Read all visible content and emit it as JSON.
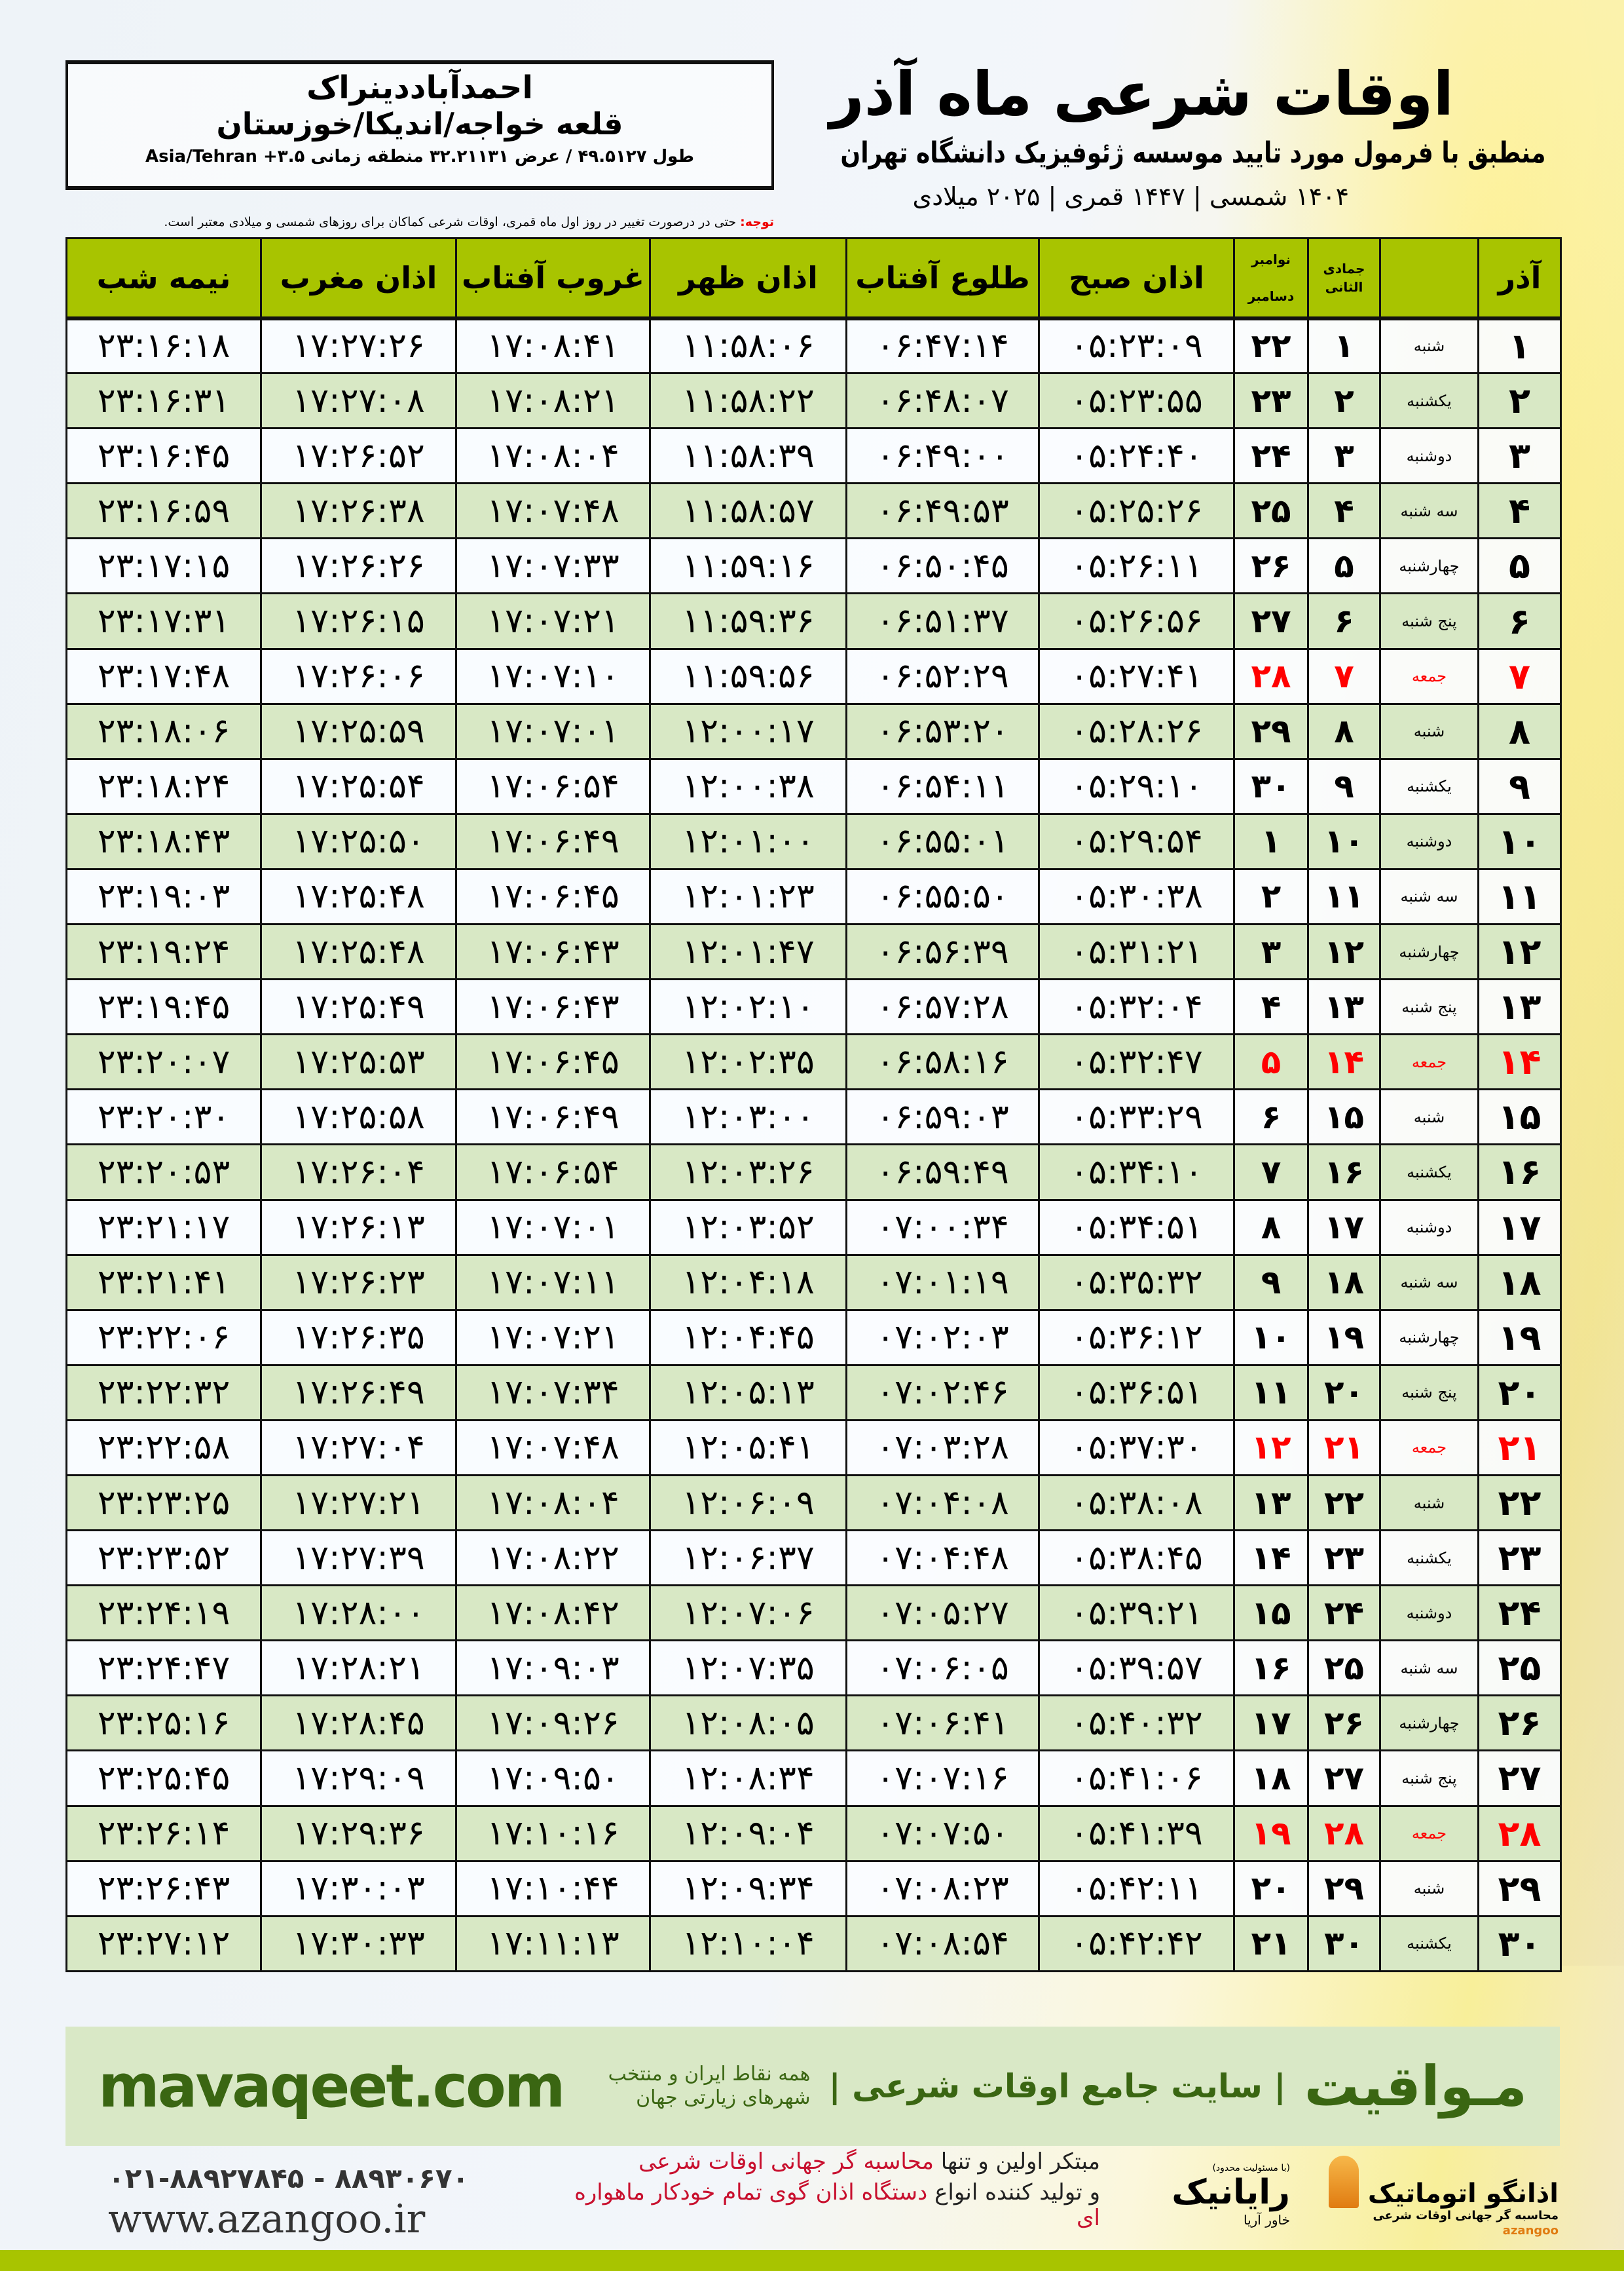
{
  "location": {
    "name": "احمدآباددینراک",
    "region": "قلعه خواجه/اندیکا/خوزستان",
    "coords": "طول ۴۹.۵۱۲۷ / عرض ۳۲.۲۱۱۳۱ منطقه زمانی ۳.۵+ Asia/Tehran"
  },
  "header": {
    "title": "اوقات شرعی ماه آذر",
    "subtitle": "منطبق با فرمول مورد تایید موسسه ژئوفیزیک دانشگاه تهران",
    "dates": "۱۴۰۴ شمسی | ۱۴۴۷ قمری | ۲۰۲۵ میلادی"
  },
  "note": {
    "label": "توجه:",
    "text": " حتی در درصورت تغییر در روز اول ماه قمری، اوقات شرعی کماکان برای روزهای شمسی و میلادی معتبر است."
  },
  "table": {
    "headers": {
      "azar": "آذر",
      "jumada": "جمادی الثانی",
      "gregorian_top": "نوامبر",
      "gregorian_bottom": "دسامبر",
      "fajr": "اذان صبح",
      "sunrise": "طلوع آفتاب",
      "dhuhr": "اذان ظهر",
      "sunset": "غروب آفتاب",
      "maghrib": "اذان مغرب",
      "midnight": "نیمه شب"
    },
    "holiday_color": "#ff0000",
    "rows": [
      [
        "۱",
        "شنبه",
        "۱",
        "۲۲",
        "۰۵:۲۳:۰۹",
        "۰۶:۴۷:۱۴",
        "۱۱:۵۸:۰۶",
        "۱۷:۰۸:۴۱",
        "۱۷:۲۷:۲۶",
        "۲۳:۱۶:۱۸",
        false
      ],
      [
        "۲",
        "یکشنبه",
        "۲",
        "۲۳",
        "۰۵:۲۳:۵۵",
        "۰۶:۴۸:۰۷",
        "۱۱:۵۸:۲۲",
        "۱۷:۰۸:۲۱",
        "۱۷:۲۷:۰۸",
        "۲۳:۱۶:۳۱",
        false
      ],
      [
        "۳",
        "دوشنبه",
        "۳",
        "۲۴",
        "۰۵:۲۴:۴۰",
        "۰۶:۴۹:۰۰",
        "۱۱:۵۸:۳۹",
        "۱۷:۰۸:۰۴",
        "۱۷:۲۶:۵۲",
        "۲۳:۱۶:۴۵",
        false
      ],
      [
        "۴",
        "سه شنبه",
        "۴",
        "۲۵",
        "۰۵:۲۵:۲۶",
        "۰۶:۴۹:۵۳",
        "۱۱:۵۸:۵۷",
        "۱۷:۰۷:۴۸",
        "۱۷:۲۶:۳۸",
        "۲۳:۱۶:۵۹",
        false
      ],
      [
        "۵",
        "چهارشنبه",
        "۵",
        "۲۶",
        "۰۵:۲۶:۱۱",
        "۰۶:۵۰:۴۵",
        "۱۱:۵۹:۱۶",
        "۱۷:۰۷:۳۳",
        "۱۷:۲۶:۲۶",
        "۲۳:۱۷:۱۵",
        false
      ],
      [
        "۶",
        "پنج شنبه",
        "۶",
        "۲۷",
        "۰۵:۲۶:۵۶",
        "۰۶:۵۱:۳۷",
        "۱۱:۵۹:۳۶",
        "۱۷:۰۷:۲۱",
        "۱۷:۲۶:۱۵",
        "۲۳:۱۷:۳۱",
        false
      ],
      [
        "۷",
        "جمعه",
        "۷",
        "۲۸",
        "۰۵:۲۷:۴۱",
        "۰۶:۵۲:۲۹",
        "۱۱:۵۹:۵۶",
        "۱۷:۰۷:۱۰",
        "۱۷:۲۶:۰۶",
        "۲۳:۱۷:۴۸",
        true
      ],
      [
        "۸",
        "شنبه",
        "۸",
        "۲۹",
        "۰۵:۲۸:۲۶",
        "۰۶:۵۳:۲۰",
        "۱۲:۰۰:۱۷",
        "۱۷:۰۷:۰۱",
        "۱۷:۲۵:۵۹",
        "۲۳:۱۸:۰۶",
        false
      ],
      [
        "۹",
        "یکشنبه",
        "۹",
        "۳۰",
        "۰۵:۲۹:۱۰",
        "۰۶:۵۴:۱۱",
        "۱۲:۰۰:۳۸",
        "۱۷:۰۶:۵۴",
        "۱۷:۲۵:۵۴",
        "۲۳:۱۸:۲۴",
        false
      ],
      [
        "۱۰",
        "دوشنبه",
        "۱۰",
        "۱",
        "۰۵:۲۹:۵۴",
        "۰۶:۵۵:۰۱",
        "۱۲:۰۱:۰۰",
        "۱۷:۰۶:۴۹",
        "۱۷:۲۵:۵۰",
        "۲۳:۱۸:۴۳",
        false
      ],
      [
        "۱۱",
        "سه شنبه",
        "۱۱",
        "۲",
        "۰۵:۳۰:۳۸",
        "۰۶:۵۵:۵۰",
        "۱۲:۰۱:۲۳",
        "۱۷:۰۶:۴۵",
        "۱۷:۲۵:۴۸",
        "۲۳:۱۹:۰۳",
        false
      ],
      [
        "۱۲",
        "چهارشنبه",
        "۱۲",
        "۳",
        "۰۵:۳۱:۲۱",
        "۰۶:۵۶:۳۹",
        "۱۲:۰۱:۴۷",
        "۱۷:۰۶:۴۳",
        "۱۷:۲۵:۴۸",
        "۲۳:۱۹:۲۴",
        false
      ],
      [
        "۱۳",
        "پنج شنبه",
        "۱۳",
        "۴",
        "۰۵:۳۲:۰۴",
        "۰۶:۵۷:۲۸",
        "۱۲:۰۲:۱۰",
        "۱۷:۰۶:۴۳",
        "۱۷:۲۵:۴۹",
        "۲۳:۱۹:۴۵",
        false
      ],
      [
        "۱۴",
        "جمعه",
        "۱۴",
        "۵",
        "۰۵:۳۲:۴۷",
        "۰۶:۵۸:۱۶",
        "۱۲:۰۲:۳۵",
        "۱۷:۰۶:۴۵",
        "۱۷:۲۵:۵۳",
        "۲۳:۲۰:۰۷",
        true
      ],
      [
        "۱۵",
        "شنبه",
        "۱۵",
        "۶",
        "۰۵:۳۳:۲۹",
        "۰۶:۵۹:۰۳",
        "۱۲:۰۳:۰۰",
        "۱۷:۰۶:۴۹",
        "۱۷:۲۵:۵۸",
        "۲۳:۲۰:۳۰",
        false
      ],
      [
        "۱۶",
        "یکشنبه",
        "۱۶",
        "۷",
        "۰۵:۳۴:۱۰",
        "۰۶:۵۹:۴۹",
        "۱۲:۰۳:۲۶",
        "۱۷:۰۶:۵۴",
        "۱۷:۲۶:۰۴",
        "۲۳:۲۰:۵۳",
        false
      ],
      [
        "۱۷",
        "دوشنبه",
        "۱۷",
        "۸",
        "۰۵:۳۴:۵۱",
        "۰۷:۰۰:۳۴",
        "۱۲:۰۳:۵۲",
        "۱۷:۰۷:۰۱",
        "۱۷:۲۶:۱۳",
        "۲۳:۲۱:۱۷",
        false
      ],
      [
        "۱۸",
        "سه شنبه",
        "۱۸",
        "۹",
        "۰۵:۳۵:۳۲",
        "۰۷:۰۱:۱۹",
        "۱۲:۰۴:۱۸",
        "۱۷:۰۷:۱۱",
        "۱۷:۲۶:۲۳",
        "۲۳:۲۱:۴۱",
        false
      ],
      [
        "۱۹",
        "چهارشنبه",
        "۱۹",
        "۱۰",
        "۰۵:۳۶:۱۲",
        "۰۷:۰۲:۰۳",
        "۱۲:۰۴:۴۵",
        "۱۷:۰۷:۲۱",
        "۱۷:۲۶:۳۵",
        "۲۳:۲۲:۰۶",
        false
      ],
      [
        "۲۰",
        "پنج شنبه",
        "۲۰",
        "۱۱",
        "۰۵:۳۶:۵۱",
        "۰۷:۰۲:۴۶",
        "۱۲:۰۵:۱۳",
        "۱۷:۰۷:۳۴",
        "۱۷:۲۶:۴۹",
        "۲۳:۲۲:۳۲",
        false
      ],
      [
        "۲۱",
        "جمعه",
        "۲۱",
        "۱۲",
        "۰۵:۳۷:۳۰",
        "۰۷:۰۳:۲۸",
        "۱۲:۰۵:۴۱",
        "۱۷:۰۷:۴۸",
        "۱۷:۲۷:۰۴",
        "۲۳:۲۲:۵۸",
        true
      ],
      [
        "۲۲",
        "شنبه",
        "۲۲",
        "۱۳",
        "۰۵:۳۸:۰۸",
        "۰۷:۰۴:۰۸",
        "۱۲:۰۶:۰۹",
        "۱۷:۰۸:۰۴",
        "۱۷:۲۷:۲۱",
        "۲۳:۲۳:۲۵",
        false
      ],
      [
        "۲۳",
        "یکشنبه",
        "۲۳",
        "۱۴",
        "۰۵:۳۸:۴۵",
        "۰۷:۰۴:۴۸",
        "۱۲:۰۶:۳۷",
        "۱۷:۰۸:۲۲",
        "۱۷:۲۷:۳۹",
        "۲۳:۲۳:۵۲",
        false
      ],
      [
        "۲۴",
        "دوشنبه",
        "۲۴",
        "۱۵",
        "۰۵:۳۹:۲۱",
        "۰۷:۰۵:۲۷",
        "۱۲:۰۷:۰۶",
        "۱۷:۰۸:۴۲",
        "۱۷:۲۸:۰۰",
        "۲۳:۲۴:۱۹",
        false
      ],
      [
        "۲۵",
        "سه شنبه",
        "۲۵",
        "۱۶",
        "۰۵:۳۹:۵۷",
        "۰۷:۰۶:۰۵",
        "۱۲:۰۷:۳۵",
        "۱۷:۰۹:۰۳",
        "۱۷:۲۸:۲۱",
        "۲۳:۲۴:۴۷",
        false
      ],
      [
        "۲۶",
        "چهارشنبه",
        "۲۶",
        "۱۷",
        "۰۵:۴۰:۳۲",
        "۰۷:۰۶:۴۱",
        "۱۲:۰۸:۰۵",
        "۱۷:۰۹:۲۶",
        "۱۷:۲۸:۴۵",
        "۲۳:۲۵:۱۶",
        false
      ],
      [
        "۲۷",
        "پنج شنبه",
        "۲۷",
        "۱۸",
        "۰۵:۴۱:۰۶",
        "۰۷:۰۷:۱۶",
        "۱۲:۰۸:۳۴",
        "۱۷:۰۹:۵۰",
        "۱۷:۲۹:۰۹",
        "۲۳:۲۵:۴۵",
        false
      ],
      [
        "۲۸",
        "جمعه",
        "۲۸",
        "۱۹",
        "۰۵:۴۱:۳۹",
        "۰۷:۰۷:۵۰",
        "۱۲:۰۹:۰۴",
        "۱۷:۱۰:۱۶",
        "۱۷:۲۹:۳۶",
        "۲۳:۲۶:۱۴",
        true
      ],
      [
        "۲۹",
        "شنبه",
        "۲۹",
        "۲۰",
        "۰۵:۴۲:۱۱",
        "۰۷:۰۸:۲۳",
        "۱۲:۰۹:۳۴",
        "۱۷:۱۰:۴۴",
        "۱۷:۳۰:۰۳",
        "۲۳:۲۶:۴۳",
        false
      ],
      [
        "۳۰",
        "یکشنبه",
        "۳۰",
        "۲۱",
        "۰۵:۴۲:۴۲",
        "۰۷:۰۸:۵۴",
        "۱۲:۱۰:۰۴",
        "۱۷:۱۱:۱۳",
        "۱۷:۳۰:۳۳",
        "۲۳:۲۷:۱۲",
        false
      ]
    ]
  },
  "banner": {
    "brand": "مـواقیت",
    "tagline": "| سایت جامع اوقات شرعی |",
    "sub": "همه نقاط ایران و منتخب شهرهای زیارتی جهان",
    "site": "mavaqeet.com"
  },
  "footer": {
    "line1_a": "مبتکر اولین و تنها ",
    "line1_b": "محاسبه گر جهانی اوقات شرعی",
    "line2_a": "و تولید کننده انواع ",
    "line2_b": "دستگاه اذان گوی تمام خودکار ماهواره ای",
    "phone": "۰۲۱-۸۸۹۲۷۸۴۵ - ۸۸۹۳۰۶۷۰",
    "web": "www.azangoo.ir",
    "logo_azangoo": "اذانگو اتوماتیک",
    "logo_azangoo_sub": "محاسبه گر جهانی اوقات شرعی",
    "logo_azangoo_latin": "azangoo",
    "logo_rayanik": "رایانیک",
    "logo_rayanik_sub": "خاور آریا",
    "logo_rayanik_note": "(با مسئولیت محدود)"
  }
}
